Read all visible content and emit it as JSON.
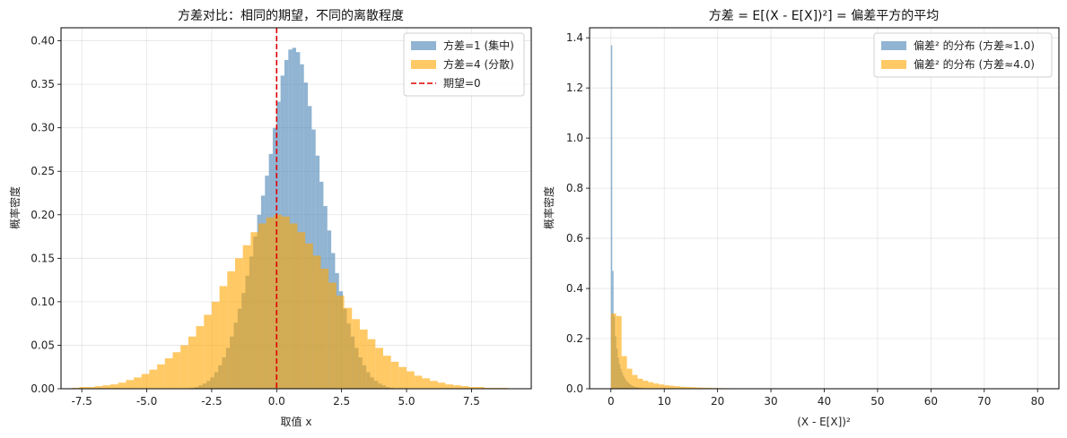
{
  "chart_data": [
    {
      "type": "histogram",
      "title": "方差对比：相同的期望，不同的离散程度",
      "xlabel": "取值 x",
      "ylabel": "概率密度",
      "xlim": [
        -8.3,
        9.8
      ],
      "ylim": [
        0,
        0.415
      ],
      "xticks": [
        -7.5,
        -5.0,
        -2.5,
        0.0,
        2.5,
        5.0,
        7.5
      ],
      "xtick_labels": [
        "-7.5",
        "-5.0",
        "-2.5",
        "0.0",
        "2.5",
        "5.0",
        "7.5"
      ],
      "yticks": [
        0.0,
        0.05,
        0.1,
        0.15,
        0.2,
        0.25,
        0.3,
        0.35,
        0.4
      ],
      "ytick_labels": [
        "0.00",
        "0.05",
        "0.10",
        "0.15",
        "0.20",
        "0.25",
        "0.30",
        "0.35",
        "0.40"
      ],
      "grid": true,
      "legend_position": "top-right",
      "series": [
        {
          "name": "方差=1 (集中)",
          "color": "#4682b4",
          "opacity": 0.6,
          "bin_start": -3.3,
          "bin_width": 0.15,
          "values": [
            0.001,
            0.002,
            0.004,
            0.006,
            0.009,
            0.013,
            0.019,
            0.027,
            0.036,
            0.047,
            0.06,
            0.076,
            0.092,
            0.11,
            0.13,
            0.152,
            0.175,
            0.2,
            0.222,
            0.245,
            0.27,
            0.3,
            0.33,
            0.36,
            0.378,
            0.39,
            0.392,
            0.387,
            0.373,
            0.352,
            0.325,
            0.298,
            0.268,
            0.238,
            0.21,
            0.182,
            0.156,
            0.133,
            0.112,
            0.092,
            0.075,
            0.06,
            0.047,
            0.036,
            0.027,
            0.019,
            0.013,
            0.009,
            0.006,
            0.004,
            0.002,
            0.001
          ]
        },
        {
          "name": "方差=4 (分散)",
          "color": "#ffa500",
          "opacity": 0.6,
          "bin_start": -7.9,
          "bin_width": 0.3,
          "values": [
            0.001,
            0.002,
            0.002,
            0.003,
            0.004,
            0.005,
            0.007,
            0.01,
            0.013,
            0.017,
            0.022,
            0.028,
            0.035,
            0.042,
            0.05,
            0.06,
            0.072,
            0.085,
            0.1,
            0.118,
            0.135,
            0.15,
            0.165,
            0.18,
            0.19,
            0.197,
            0.2,
            0.198,
            0.19,
            0.18,
            0.167,
            0.153,
            0.138,
            0.122,
            0.107,
            0.093,
            0.08,
            0.068,
            0.057,
            0.047,
            0.038,
            0.031,
            0.025,
            0.02,
            0.015,
            0.012,
            0.009,
            0.007,
            0.005,
            0.004,
            0.003,
            0.002,
            0.002,
            0.001,
            0.001,
            0.001
          ]
        }
      ],
      "vline": {
        "name": "期望=0",
        "x": 0,
        "color": "#e00000",
        "style": "dashed"
      }
    },
    {
      "type": "histogram",
      "title": "方差 = E[(X - E[X])²] = 偏差平方的平均",
      "xlabel": "(X - E[X])²",
      "ylabel": "概率密度",
      "xlim": [
        -4,
        84
      ],
      "ylim": [
        0,
        1.44
      ],
      "xticks": [
        0,
        10,
        20,
        30,
        40,
        50,
        60,
        70,
        80
      ],
      "xtick_labels": [
        "0",
        "10",
        "20",
        "30",
        "40",
        "50",
        "60",
        "70",
        "80"
      ],
      "yticks": [
        0.0,
        0.2,
        0.4,
        0.6,
        0.8,
        1.0,
        1.2,
        1.4
      ],
      "ytick_labels": [
        "0.0",
        "0.2",
        "0.4",
        "0.6",
        "0.8",
        "1.0",
        "1.2",
        "1.4"
      ],
      "grid": true,
      "legend_position": "top-right",
      "series": [
        {
          "name": "偏差² 的分布 (方差≈1.0)",
          "color": "#4682b4",
          "opacity": 0.6,
          "bin_start": 0,
          "bin_width": 0.25,
          "values": [
            1.37,
            0.47,
            0.29,
            0.21,
            0.16,
            0.125,
            0.1,
            0.08,
            0.065,
            0.052,
            0.042,
            0.034,
            0.027,
            0.022,
            0.018,
            0.014,
            0.011,
            0.009,
            0.007,
            0.006,
            0.005,
            0.004,
            0.003,
            0.0025,
            0.002,
            0.0015,
            0.001,
            0.001
          ]
        },
        {
          "name": "偏差² 的分布 (方差≈4.0)",
          "color": "#ffa500",
          "opacity": 0.6,
          "bin_start": 0,
          "bin_width": 1.0,
          "values": [
            0.3,
            0.29,
            0.13,
            0.08,
            0.055,
            0.04,
            0.032,
            0.026,
            0.021,
            0.017,
            0.014,
            0.012,
            0.01,
            0.008,
            0.007,
            0.006,
            0.005,
            0.004,
            0.0035,
            0.003,
            0.0025,
            0.002,
            0.002,
            0.0015,
            0.0015,
            0.001,
            0.001,
            0.001,
            0.001,
            0.001,
            0.001,
            0.0005
          ]
        }
      ]
    }
  ]
}
